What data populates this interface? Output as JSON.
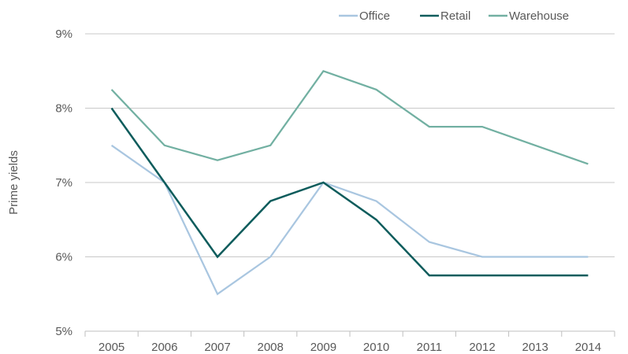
{
  "chart_data": {
    "type": "line",
    "ylabel": "Prime yields",
    "ylim": [
      5,
      9
    ],
    "yticks": [
      "5%",
      "6%",
      "7%",
      "8%",
      "9%"
    ],
    "grid": true,
    "legend_position": "top-right",
    "categories": [
      "2005",
      "2006",
      "2007",
      "2008",
      "2009",
      "2010",
      "2011",
      "2012",
      "2013",
      "2014"
    ],
    "series": [
      {
        "name": "Office",
        "color": "#a9c6e0",
        "values": [
          7.5,
          7.0,
          5.5,
          6.0,
          7.0,
          6.75,
          6.2,
          6.0,
          6.0,
          6.0
        ]
      },
      {
        "name": "Retail",
        "color": "#0d5c5c",
        "values": [
          8.0,
          7.0,
          6.0,
          6.75,
          7.0,
          6.5,
          5.75,
          5.75,
          5.75,
          5.75
        ]
      },
      {
        "name": "Warehouse",
        "color": "#72b0a2",
        "values": [
          8.25,
          7.5,
          7.3,
          7.5,
          8.5,
          8.25,
          7.75,
          7.75,
          7.5,
          7.25
        ]
      }
    ]
  }
}
